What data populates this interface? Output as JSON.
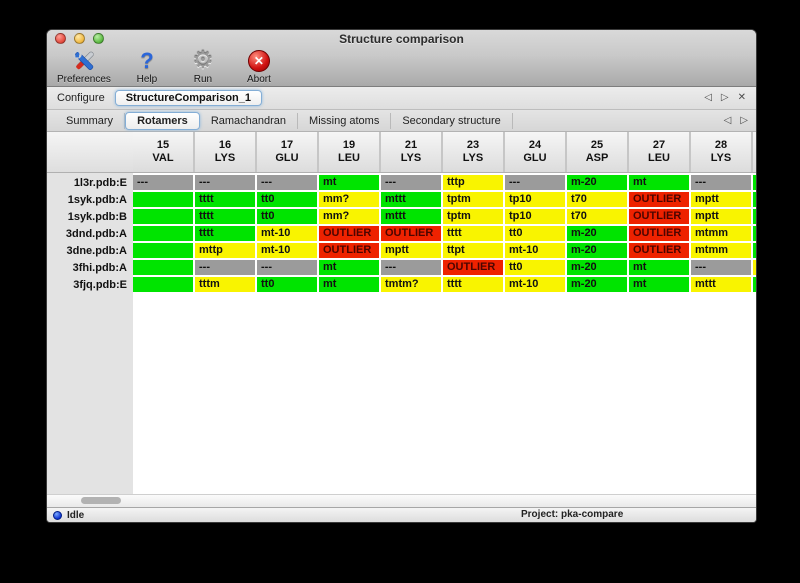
{
  "window": {
    "title": "Structure comparison"
  },
  "toolbar": {
    "items": [
      {
        "label": "Preferences",
        "icon": "tools-icon"
      },
      {
        "label": "Help",
        "icon": "help-icon"
      },
      {
        "label": "Run",
        "icon": "gear-icon"
      },
      {
        "label": "Abort",
        "icon": "abort-icon"
      }
    ]
  },
  "configure": {
    "label": "Configure",
    "tab_name": "StructureComparison_1",
    "nav": {
      "prev": "◁",
      "next": "▷",
      "close": "✕"
    }
  },
  "tabs": {
    "items": [
      "Summary",
      "Rotamers",
      "Ramachandran",
      "Missing atoms",
      "Secondary structure"
    ],
    "selected": "Rotamers",
    "nav": {
      "prev": "◁",
      "next": "▷"
    }
  },
  "colors": {
    "green": "#00e400",
    "yellow": "#f9f400",
    "red": "#ee2200",
    "gray": "#9b9b9b"
  },
  "table": {
    "columns": [
      {
        "num": "15",
        "res": "VAL"
      },
      {
        "num": "16",
        "res": "LYS"
      },
      {
        "num": "17",
        "res": "GLU"
      },
      {
        "num": "19",
        "res": "LEU"
      },
      {
        "num": "21",
        "res": "LYS"
      },
      {
        "num": "23",
        "res": "LYS"
      },
      {
        "num": "24",
        "res": "GLU"
      },
      {
        "num": "25",
        "res": "ASP"
      },
      {
        "num": "27",
        "res": "LEU"
      },
      {
        "num": "28",
        "res": "LYS"
      }
    ],
    "rows": [
      {
        "label": "1l3r.pdb:E",
        "cells": [
          {
            "text": "---",
            "color": "gray"
          },
          {
            "text": "---",
            "color": "gray"
          },
          {
            "text": "---",
            "color": "gray"
          },
          {
            "text": "mt",
            "color": "green"
          },
          {
            "text": "---",
            "color": "gray"
          },
          {
            "text": "tttp",
            "color": "yellow"
          },
          {
            "text": "---",
            "color": "gray"
          },
          {
            "text": "m-20",
            "color": "green"
          },
          {
            "text": "mt",
            "color": "green"
          },
          {
            "text": "---",
            "color": "gray"
          }
        ],
        "overflow_color": "green"
      },
      {
        "label": "1syk.pdb:A",
        "cells": [
          {
            "text": "",
            "color": "green"
          },
          {
            "text": "tttt",
            "color": "green"
          },
          {
            "text": "tt0",
            "color": "green"
          },
          {
            "text": "mm?",
            "color": "yellow"
          },
          {
            "text": "mttt",
            "color": "green"
          },
          {
            "text": "tptm",
            "color": "yellow"
          },
          {
            "text": "tp10",
            "color": "yellow"
          },
          {
            "text": "t70",
            "color": "yellow"
          },
          {
            "text": "OUTLIER",
            "color": "red"
          },
          {
            "text": "mptt",
            "color": "yellow"
          }
        ],
        "overflow_color": "green"
      },
      {
        "label": "1syk.pdb:B",
        "cells": [
          {
            "text": "",
            "color": "green"
          },
          {
            "text": "tttt",
            "color": "green"
          },
          {
            "text": "tt0",
            "color": "green"
          },
          {
            "text": "mm?",
            "color": "yellow"
          },
          {
            "text": "mttt",
            "color": "green"
          },
          {
            "text": "tptm",
            "color": "yellow"
          },
          {
            "text": "tp10",
            "color": "yellow"
          },
          {
            "text": "t70",
            "color": "yellow"
          },
          {
            "text": "OUTLIER",
            "color": "red"
          },
          {
            "text": "mptt",
            "color": "yellow"
          }
        ],
        "overflow_color": "green"
      },
      {
        "label": "3dnd.pdb:A",
        "cells": [
          {
            "text": "",
            "color": "green"
          },
          {
            "text": "tttt",
            "color": "green"
          },
          {
            "text": "mt-10",
            "color": "yellow"
          },
          {
            "text": "OUTLIER",
            "color": "red"
          },
          {
            "text": "OUTLIER",
            "color": "red"
          },
          {
            "text": "tttt",
            "color": "yellow"
          },
          {
            "text": "tt0",
            "color": "yellow"
          },
          {
            "text": "m-20",
            "color": "green"
          },
          {
            "text": "OUTLIER",
            "color": "red"
          },
          {
            "text": "mtmm",
            "color": "yellow"
          }
        ],
        "overflow_color": "green"
      },
      {
        "label": "3dne.pdb:A",
        "cells": [
          {
            "text": "",
            "color": "green"
          },
          {
            "text": "mttp",
            "color": "yellow"
          },
          {
            "text": "mt-10",
            "color": "yellow"
          },
          {
            "text": "OUTLIER",
            "color": "red"
          },
          {
            "text": "mptt",
            "color": "yellow"
          },
          {
            "text": "ttpt",
            "color": "yellow"
          },
          {
            "text": "mt-10",
            "color": "yellow"
          },
          {
            "text": "m-20",
            "color": "green"
          },
          {
            "text": "OUTLIER",
            "color": "red"
          },
          {
            "text": "mtmm",
            "color": "yellow"
          }
        ],
        "overflow_color": "green"
      },
      {
        "label": "3fhi.pdb:A",
        "cells": [
          {
            "text": "",
            "color": "green"
          },
          {
            "text": "---",
            "color": "gray"
          },
          {
            "text": "---",
            "color": "gray"
          },
          {
            "text": "mt",
            "color": "green"
          },
          {
            "text": "---",
            "color": "gray"
          },
          {
            "text": "OUTLIER",
            "color": "red"
          },
          {
            "text": "tt0",
            "color": "yellow"
          },
          {
            "text": "m-20",
            "color": "green"
          },
          {
            "text": "mt",
            "color": "green"
          },
          {
            "text": "---",
            "color": "gray"
          }
        ],
        "overflow_color": "yellow"
      },
      {
        "label": "3fjq.pdb:E",
        "cells": [
          {
            "text": "",
            "color": "green"
          },
          {
            "text": "tttm",
            "color": "yellow"
          },
          {
            "text": "tt0",
            "color": "green"
          },
          {
            "text": "mt",
            "color": "green"
          },
          {
            "text": "tmtm?",
            "color": "yellow"
          },
          {
            "text": "tttt",
            "color": "yellow"
          },
          {
            "text": "mt-10",
            "color": "yellow"
          },
          {
            "text": "m-20",
            "color": "green"
          },
          {
            "text": "mt",
            "color": "green"
          },
          {
            "text": "mttt",
            "color": "yellow"
          }
        ],
        "overflow_color": "green"
      }
    ]
  },
  "status": {
    "text": "Idle",
    "project": "Project: pka-compare"
  }
}
